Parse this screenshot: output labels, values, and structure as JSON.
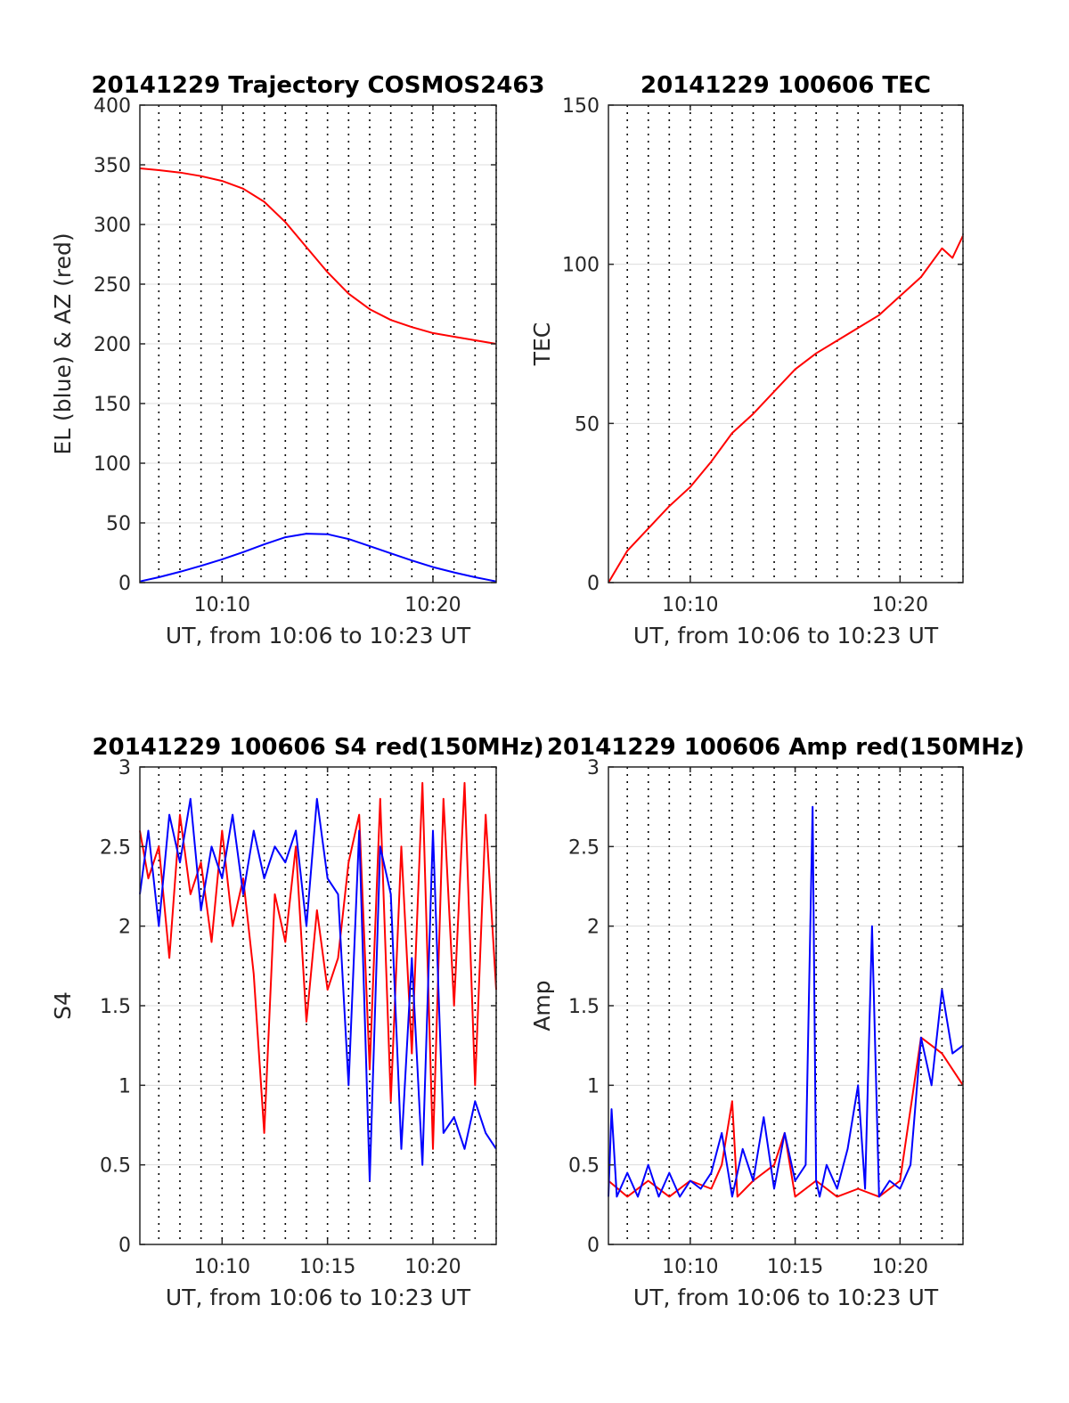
{
  "chart_data": [
    {
      "type": "line",
      "title": "20141229 Trajectory COSMOS2463",
      "xlabel": "UT, from 10:06 to 10:23 UT",
      "ylabel": "EL (blue) & AZ (red)",
      "xlim": [
        "10:06:06",
        "10:23:00"
      ],
      "ylim": [
        0,
        400
      ],
      "xticks": [
        "10:10",
        "10:20"
      ],
      "yticks": [
        "0",
        "50",
        "100",
        "150",
        "200",
        "250",
        "300",
        "350",
        "400"
      ],
      "grid": "dotted vertical every minute, horizontal at y ticks",
      "series": [
        {
          "color": "#ff0000",
          "x": [
            "10:06:06",
            "10:07:00",
            "10:08:00",
            "10:09:00",
            "10:10:00",
            "10:11:00",
            "10:12:00",
            "10:13:00",
            "10:14:00",
            "10:15:00",
            "10:16:00",
            "10:17:00",
            "10:18:00",
            "10:19:00",
            "10:20:00",
            "10:21:00",
            "10:22:00",
            "10:23:00"
          ],
          "values": [
            347,
            345.5,
            343.5,
            340.5,
            336.5,
            330,
            319,
            302,
            281,
            260,
            242,
            229,
            220,
            214,
            209,
            206,
            203,
            200
          ]
        },
        {
          "color": "#0000ff",
          "x": [
            "10:06:06",
            "10:07:00",
            "10:08:00",
            "10:09:00",
            "10:10:00",
            "10:11:00",
            "10:12:00",
            "10:13:00",
            "10:14:00",
            "10:15:00",
            "10:16:00",
            "10:17:00",
            "10:18:00",
            "10:19:00",
            "10:20:00",
            "10:21:00",
            "10:22:00",
            "10:23:00"
          ],
          "values": [
            1,
            4.5,
            9,
            14,
            19.5,
            25.5,
            32,
            38,
            41,
            40.5,
            36.5,
            30.5,
            24.5,
            18.5,
            13,
            8.5,
            4.5,
            1
          ]
        }
      ]
    },
    {
      "type": "line",
      "title": "20141229 100606 TEC",
      "xlabel": "UT, from 10:06 to 10:23 UT",
      "ylabel": "TEC",
      "xlim": [
        "10:06:06",
        "10:23:00"
      ],
      "ylim": [
        0,
        150
      ],
      "xticks": [
        "10:10",
        "10:20"
      ],
      "yticks": [
        "0",
        "50",
        "100",
        "150"
      ],
      "grid": "dotted vertical every minute, horizontal at y ticks",
      "series": [
        {
          "color": "#ff0000",
          "x": [
            "10:06:06",
            "10:07:00",
            "10:08:00",
            "10:09:00",
            "10:10:00",
            "10:11:00",
            "10:12:00",
            "10:13:00",
            "10:14:00",
            "10:15:00",
            "10:16:00",
            "10:17:00",
            "10:18:00",
            "10:19:00",
            "10:20:00",
            "10:21:00",
            "10:22:00",
            "10:22:30",
            "10:23:00"
          ],
          "values": [
            0,
            10,
            17,
            24,
            30,
            38,
            47,
            53,
            60,
            67,
            72,
            76,
            80,
            84,
            90,
            96,
            105,
            102,
            109
          ]
        }
      ]
    },
    {
      "type": "line",
      "title": "20141229 100606 S4 red(150MHz)",
      "xlabel": "UT, from 10:06 to 10:23 UT",
      "ylabel": "S4",
      "xlim": [
        "10:06:06",
        "10:23:00"
      ],
      "ylim": [
        0,
        3
      ],
      "xticks": [
        "10:10",
        "10:15",
        "10:20"
      ],
      "yticks": [
        "0",
        "0.5",
        "1",
        "1.5",
        "2",
        "2.5",
        "3"
      ],
      "grid": "dotted vertical every minute, horizontal at y ticks",
      "series": [
        {
          "color": "#ff0000",
          "x": [
            "10:06:06",
            "10:06:30",
            "10:07:00",
            "10:07:30",
            "10:08:00",
            "10:08:30",
            "10:09:00",
            "10:09:30",
            "10:10:00",
            "10:10:30",
            "10:11:00",
            "10:11:30",
            "10:12:00",
            "10:12:30",
            "10:13:00",
            "10:13:30",
            "10:14:00",
            "10:14:30",
            "10:15:00",
            "10:15:30",
            "10:16:00",
            "10:16:30",
            "10:17:00",
            "10:17:30",
            "10:18:00",
            "10:18:30",
            "10:19:00",
            "10:19:30",
            "10:20:00",
            "10:20:30",
            "10:21:00",
            "10:21:30",
            "10:22:00",
            "10:22:30",
            "10:23:00"
          ],
          "values": [
            2.6,
            2.3,
            2.5,
            1.8,
            2.7,
            2.2,
            2.4,
            1.9,
            2.6,
            2.0,
            2.3,
            1.7,
            0.7,
            2.2,
            1.9,
            2.5,
            1.4,
            2.1,
            1.6,
            1.8,
            2.4,
            2.7,
            1.1,
            2.8,
            0.9,
            2.5,
            1.2,
            2.9,
            0.6,
            2.8,
            1.5,
            2.9,
            1.0,
            2.7,
            1.6
          ]
        },
        {
          "color": "#0000ff",
          "x": [
            "10:06:06",
            "10:06:30",
            "10:07:00",
            "10:07:30",
            "10:08:00",
            "10:08:30",
            "10:09:00",
            "10:09:30",
            "10:10:00",
            "10:10:30",
            "10:11:00",
            "10:11:30",
            "10:12:00",
            "10:12:30",
            "10:13:00",
            "10:13:30",
            "10:14:00",
            "10:14:30",
            "10:15:00",
            "10:15:30",
            "10:16:00",
            "10:16:30",
            "10:17:00",
            "10:17:30",
            "10:18:00",
            "10:18:30",
            "10:19:00",
            "10:19:30",
            "10:20:00",
            "10:20:30",
            "10:21:00",
            "10:21:30",
            "10:22:00",
            "10:22:30",
            "10:23:00"
          ],
          "values": [
            2.2,
            2.6,
            2.0,
            2.7,
            2.4,
            2.8,
            2.1,
            2.5,
            2.3,
            2.7,
            2.2,
            2.6,
            2.3,
            2.5,
            2.4,
            2.6,
            2.0,
            2.8,
            2.3,
            2.2,
            1.0,
            2.6,
            0.4,
            2.5,
            2.2,
            0.6,
            1.8,
            0.5,
            2.6,
            0.7,
            0.8,
            0.6,
            0.9,
            0.7,
            0.6
          ]
        }
      ]
    },
    {
      "type": "line",
      "title": "20141229 100606 Amp red(150MHz)",
      "xlabel": "UT, from 10:06 to 10:23 UT",
      "ylabel": "Amp",
      "xlim": [
        "10:06:06",
        "10:23:00"
      ],
      "ylim": [
        0,
        3
      ],
      "xticks": [
        "10:10",
        "10:15",
        "10:20"
      ],
      "yticks": [
        "0",
        "0.5",
        "1",
        "1.5",
        "2",
        "2.5",
        "3"
      ],
      "grid": "dotted vertical every minute, horizontal at y ticks",
      "series": [
        {
          "color": "#ff0000",
          "x": [
            "10:06:06",
            "10:07:00",
            "10:08:00",
            "10:09:00",
            "10:10:00",
            "10:11:00",
            "10:11:30",
            "10:12:00",
            "10:12:15",
            "10:13:00",
            "10:14:00",
            "10:14:30",
            "10:15:00",
            "10:16:00",
            "10:17:00",
            "10:18:00",
            "10:19:00",
            "10:20:00",
            "10:21:00",
            "10:22:00",
            "10:23:00"
          ],
          "values": [
            0.4,
            0.3,
            0.4,
            0.3,
            0.4,
            0.35,
            0.5,
            0.9,
            0.3,
            0.4,
            0.5,
            0.7,
            0.3,
            0.4,
            0.3,
            0.35,
            0.3,
            0.4,
            1.3,
            1.2,
            1.0
          ]
        },
        {
          "color": "#0000ff",
          "x": [
            "10:06:06",
            "10:06:15",
            "10:06:30",
            "10:07:00",
            "10:07:30",
            "10:08:00",
            "10:08:30",
            "10:09:00",
            "10:09:30",
            "10:10:00",
            "10:10:30",
            "10:11:00",
            "10:11:30",
            "10:12:00",
            "10:12:30",
            "10:13:00",
            "10:13:30",
            "10:14:00",
            "10:14:30",
            "10:15:00",
            "10:15:30",
            "10:15:50",
            "10:16:00",
            "10:16:10",
            "10:16:30",
            "10:17:00",
            "10:17:30",
            "10:18:00",
            "10:18:20",
            "10:18:40",
            "10:19:00",
            "10:19:30",
            "10:20:00",
            "10:20:30",
            "10:21:00",
            "10:21:30",
            "10:22:00",
            "10:22:30",
            "10:23:00"
          ],
          "values": [
            0.3,
            0.85,
            0.3,
            0.45,
            0.3,
            0.5,
            0.3,
            0.45,
            0.3,
            0.4,
            0.35,
            0.45,
            0.7,
            0.3,
            0.6,
            0.4,
            0.8,
            0.35,
            0.7,
            0.4,
            0.5,
            2.75,
            0.4,
            0.3,
            0.5,
            0.35,
            0.6,
            1.0,
            0.35,
            2.0,
            0.3,
            0.4,
            0.35,
            0.5,
            1.3,
            1.0,
            1.6,
            1.2,
            1.25
          ]
        }
      ]
    }
  ]
}
